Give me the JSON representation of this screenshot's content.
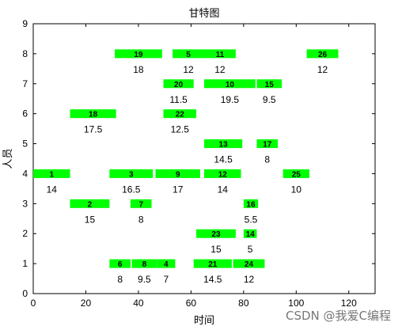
{
  "chart_data": {
    "type": "gantt",
    "title": "甘特图",
    "xlabel": "时间",
    "ylabel": "人员",
    "xlim": [
      0,
      130
    ],
    "ylim": [
      0,
      9
    ],
    "xticks": [
      0,
      20,
      40,
      60,
      80,
      100,
      120
    ],
    "yticks": [
      0,
      1,
      2,
      3,
      4,
      5,
      6,
      7,
      8,
      9
    ],
    "bar_color": "#00ff00",
    "tasks": [
      {
        "label": "1",
        "row": 4,
        "start": 0,
        "end": 14,
        "duration": "14"
      },
      {
        "label": "3",
        "row": 4,
        "start": 29,
        "end": 45.5,
        "duration": "16.5"
      },
      {
        "label": "9",
        "row": 4,
        "start": 46.5,
        "end": 63.5,
        "duration": "17"
      },
      {
        "label": "12",
        "row": 4,
        "start": 65,
        "end": 79,
        "duration": "14"
      },
      {
        "label": "25",
        "row": 4,
        "start": 95,
        "end": 105,
        "duration": "10"
      },
      {
        "label": "19",
        "row": 8,
        "start": 31,
        "end": 49,
        "duration": "18"
      },
      {
        "label": "5",
        "row": 8,
        "start": 53,
        "end": 65,
        "duration": "12"
      },
      {
        "label": "11",
        "row": 8,
        "start": 65,
        "end": 77,
        "duration": "12"
      },
      {
        "label": "26",
        "row": 8,
        "start": 104,
        "end": 116,
        "duration": "12"
      },
      {
        "label": "20",
        "row": 7,
        "start": 49.5,
        "end": 61,
        "duration": "11.5"
      },
      {
        "label": "10",
        "row": 7,
        "start": 65,
        "end": 84.5,
        "duration": "19.5"
      },
      {
        "label": "15",
        "row": 7,
        "start": 85,
        "end": 94.5,
        "duration": "9.5"
      },
      {
        "label": "18",
        "row": 6,
        "start": 14,
        "end": 31.5,
        "duration": "17.5"
      },
      {
        "label": "22",
        "row": 6,
        "start": 49.5,
        "end": 62,
        "duration": "12.5"
      },
      {
        "label": "13",
        "row": 5,
        "start": 65,
        "end": 79.5,
        "duration": "14.5"
      },
      {
        "label": "17",
        "row": 5,
        "start": 85,
        "end": 93,
        "duration": "8"
      },
      {
        "label": "2",
        "row": 3,
        "start": 14,
        "end": 29,
        "duration": "15"
      },
      {
        "label": "7",
        "row": 3,
        "start": 37,
        "end": 45,
        "duration": "8"
      },
      {
        "label": "16",
        "row": 3,
        "start": 80,
        "end": 85.5,
        "duration": "5.5"
      },
      {
        "label": "23",
        "row": 2,
        "start": 62,
        "end": 77,
        "duration": "15"
      },
      {
        "label": "14",
        "row": 2,
        "start": 80,
        "end": 85,
        "duration": "5"
      },
      {
        "label": "6",
        "row": 1,
        "start": 29,
        "end": 37,
        "duration": "8"
      },
      {
        "label": "8",
        "row": 1,
        "start": 37.5,
        "end": 47,
        "duration": "9.5"
      },
      {
        "label": "4",
        "row": 1,
        "start": 47,
        "end": 54,
        "duration": "7"
      },
      {
        "label": "21",
        "row": 1,
        "start": 61,
        "end": 75.5,
        "duration": "14.5"
      },
      {
        "label": "24",
        "row": 1,
        "start": 76,
        "end": 88,
        "duration": "12"
      }
    ]
  },
  "watermark": "CSDN @我爱C编程"
}
